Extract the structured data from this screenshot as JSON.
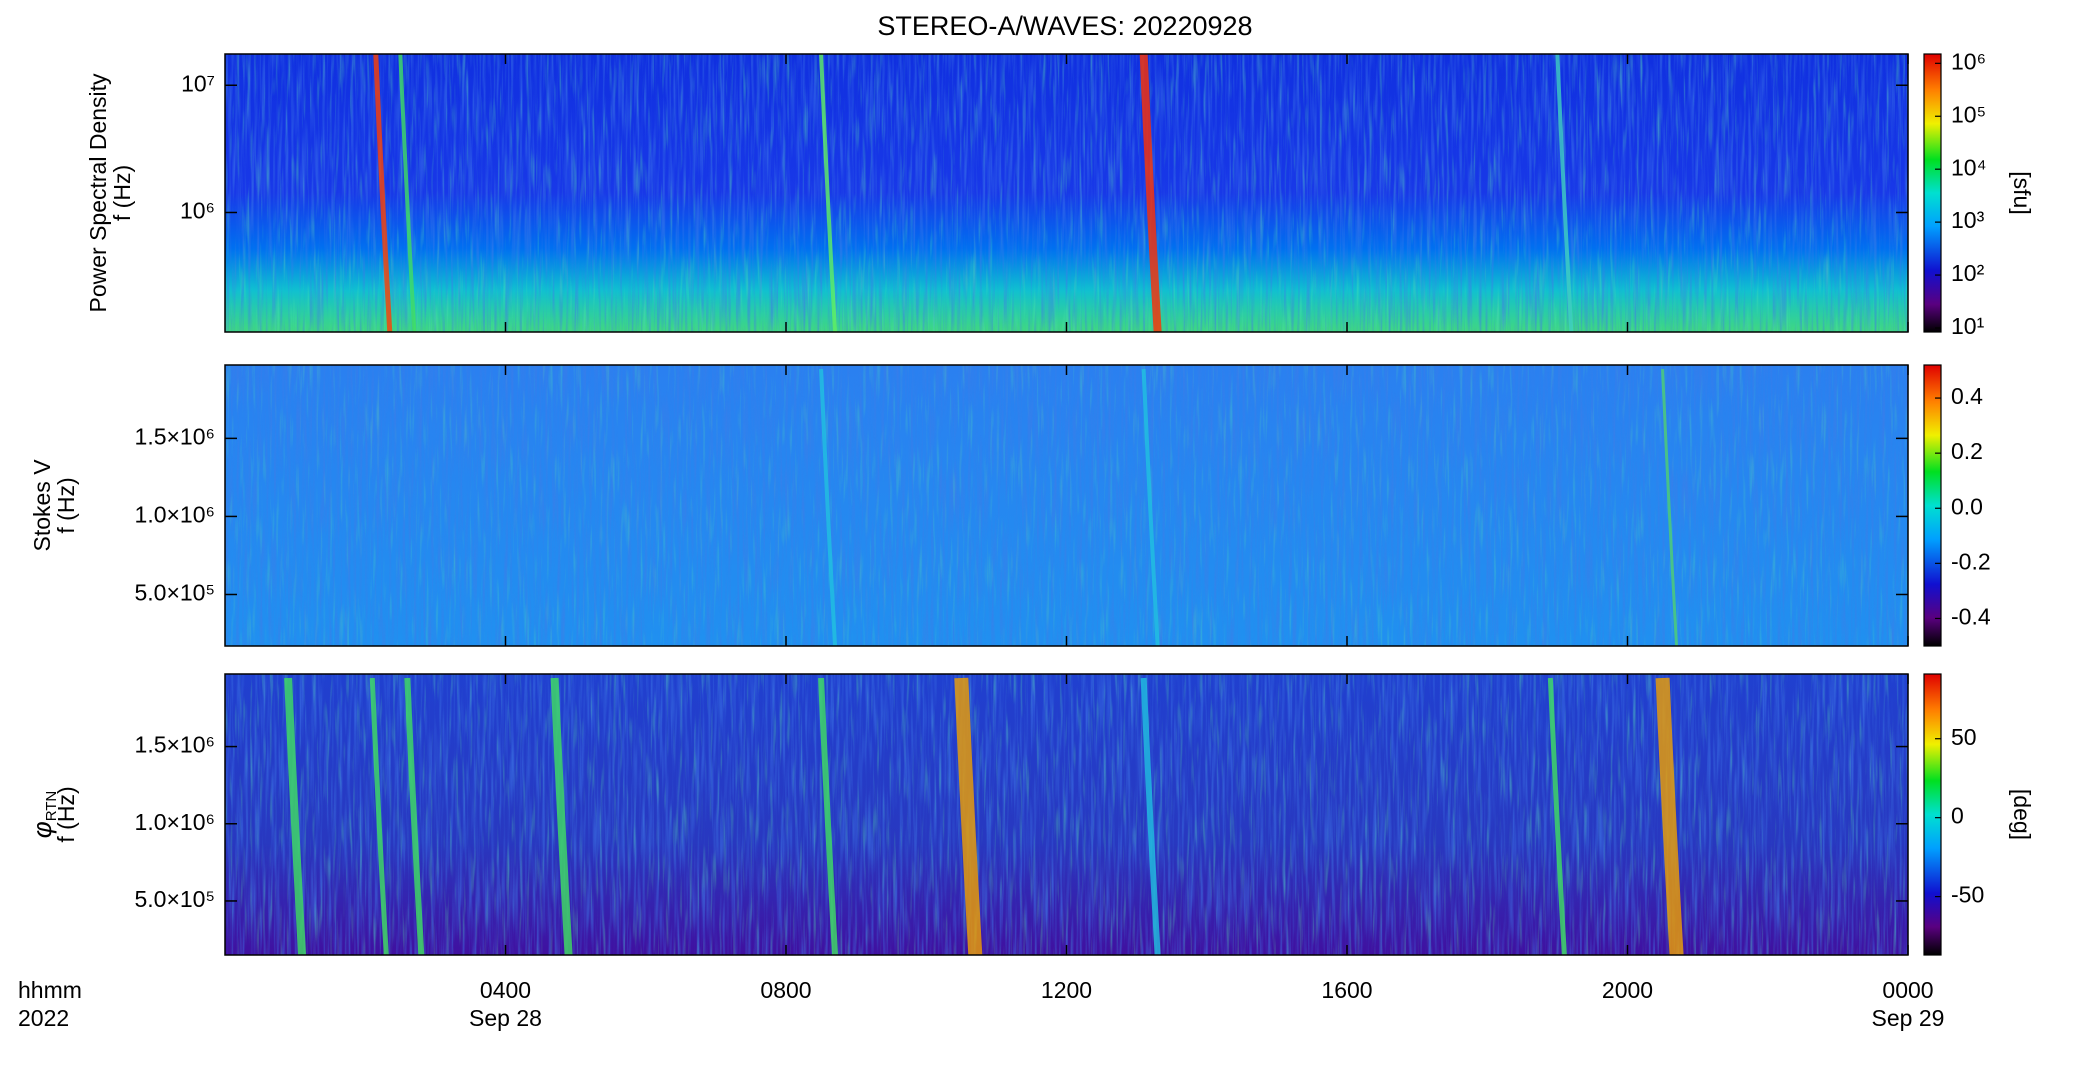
{
  "chart_data": [
    {
      "type": "heatmap",
      "title": "STEREO-A/WAVES: 20220928",
      "ylabel": "Power Spectral Density",
      "ylabel2": "f (Hz)",
      "log": true,
      "ylim": [
        115000,
        17600000
      ],
      "yticks": [
        {
          "value": 1000000,
          "label": "10⁶"
        },
        {
          "value": 10000000,
          "label": "10⁷"
        }
      ],
      "colorbar": {
        "log": true,
        "clim": [
          8.4,
          1500000
        ],
        "label": "[sfu]",
        "ticks": [
          {
            "value": 10,
            "label": "10¹"
          },
          {
            "value": 100,
            "label": "10²"
          },
          {
            "value": 1000,
            "label": "10³"
          },
          {
            "value": 10000,
            "label": "10⁴"
          },
          {
            "value": 100000,
            "label": "10⁵"
          },
          {
            "value": 1000000,
            "label": "10⁶"
          }
        ]
      }
    },
    {
      "type": "heatmap",
      "ylabel": "Stokes V",
      "ylabel2": "f (Hz)",
      "log": false,
      "ylim": [
        170000,
        1970000
      ],
      "yticks": [
        {
          "value": 500000,
          "label": "5.0×10⁵"
        },
        {
          "value": 1000000,
          "label": "1.0×10⁶"
        },
        {
          "value": 1500000,
          "label": "1.5×10⁶"
        }
      ],
      "colorbar": {
        "log": false,
        "clim": [
          -0.5,
          0.52
        ],
        "label": "",
        "ticks": [
          -0.4,
          -0.2,
          {
            "value": 0,
            "label": "0.0"
          },
          0.2,
          0.4
        ]
      }
    },
    {
      "type": "heatmap",
      "ylabel": "φ",
      "ylabel_subscript": "RTN",
      "ylabel2": "f (Hz)",
      "log": false,
      "ylim": [
        150000,
        1970000
      ],
      "yticks": [
        {
          "value": 500000,
          "label": "5.0×10⁵"
        },
        {
          "value": 1000000,
          "label": "1.0×10⁶"
        },
        {
          "value": 1500000,
          "label": "1.5×10⁶"
        }
      ],
      "colorbar": {
        "log": false,
        "clim": [
          -87,
          91
        ],
        "label": "[deg]",
        "ticks": [
          -50,
          0,
          50
        ]
      },
      "xlim": [
        0,
        24
      ],
      "xticks": [
        {
          "value": 4,
          "label": "0400"
        },
        {
          "value": 8,
          "label": "0800"
        },
        {
          "value": 12,
          "label": "1200"
        },
        {
          "value": 16,
          "label": "1600"
        },
        {
          "value": 20,
          "label": "2000"
        },
        {
          "value": 24,
          "label": "0000"
        }
      ],
      "xdates": [
        {
          "value": 4,
          "label": "Sep 28"
        },
        {
          "value": 24,
          "label": "Sep 29"
        }
      ],
      "xlabel": "hhmm",
      "xlabel2": "2022"
    }
  ]
}
